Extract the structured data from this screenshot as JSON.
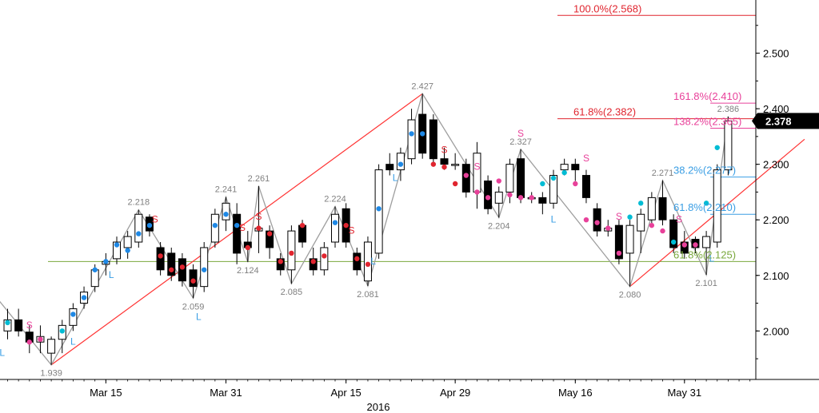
{
  "chart_data": {
    "type": "candlestick",
    "y_axis": {
      "range": [
        1.92,
        2.58
      ],
      "ticks": [
        "2.000",
        "2.100",
        "2.200",
        "2.300",
        "2.400",
        "2.500"
      ],
      "tick_values": [
        2.0,
        2.1,
        2.2,
        2.3,
        2.4,
        2.5
      ],
      "position": "right"
    },
    "x_axis": {
      "range": [
        0,
        73
      ],
      "ticks": [
        {
          "label": "Mar 15",
          "index": 9
        },
        {
          "label": "Mar 31",
          "index": 20
        },
        {
          "label": "Apr 15",
          "index": 31
        },
        {
          "label": "Apr 29",
          "index": 41
        },
        {
          "label": "May 16",
          "index": 52
        },
        {
          "label": "May 31",
          "index": 62
        }
      ],
      "year_label": "2016"
    },
    "last_price": {
      "label": "2.378",
      "value": 2.378
    },
    "candles": [
      {
        "o": 2.0,
        "h": 2.04,
        "l": 1.985,
        "c": 2.02
      },
      {
        "o": 2.02,
        "h": 2.04,
        "l": 1.99,
        "c": 2.0
      },
      {
        "o": 1.998,
        "h": 2.01,
        "l": 1.96,
        "c": 1.98
      },
      {
        "o": 1.98,
        "h": 2.01,
        "l": 1.96,
        "c": 1.99
      },
      {
        "o": 1.96,
        "h": 1.99,
        "l": 1.939,
        "c": 1.985
      },
      {
        "o": 1.985,
        "h": 2.02,
        "l": 1.96,
        "c": 2.01
      },
      {
        "o": 2.01,
        "h": 2.05,
        "l": 2.0,
        "c": 2.04
      },
      {
        "o": 2.05,
        "h": 2.08,
        "l": 2.04,
        "c": 2.07
      },
      {
        "o": 2.08,
        "h": 2.12,
        "l": 2.07,
        "c": 2.11
      },
      {
        "o": 2.12,
        "h": 2.14,
        "l": 2.1,
        "c": 2.125
      },
      {
        "o": 2.13,
        "h": 2.17,
        "l": 2.12,
        "c": 2.16
      },
      {
        "o": 2.15,
        "h": 2.18,
        "l": 2.13,
        "c": 2.17
      },
      {
        "o": 2.16,
        "h": 2.218,
        "l": 2.15,
        "c": 2.21
      },
      {
        "o": 2.205,
        "h": 2.21,
        "l": 2.17,
        "c": 2.18
      },
      {
        "o": 2.15,
        "h": 2.16,
        "l": 2.1,
        "c": 2.11
      },
      {
        "o": 2.14,
        "h": 2.15,
        "l": 2.09,
        "c": 2.1
      },
      {
        "o": 2.13,
        "h": 2.14,
        "l": 2.08,
        "c": 2.09
      },
      {
        "o": 2.11,
        "h": 2.12,
        "l": 2.059,
        "c": 2.08
      },
      {
        "o": 2.08,
        "h": 2.16,
        "l": 2.07,
        "c": 2.15
      },
      {
        "o": 2.16,
        "h": 2.22,
        "l": 2.15,
        "c": 2.21
      },
      {
        "o": 2.2,
        "h": 2.241,
        "l": 2.18,
        "c": 2.23
      },
      {
        "o": 2.21,
        "h": 2.23,
        "l": 2.12,
        "c": 2.14
      },
      {
        "o": 2.16,
        "h": 2.18,
        "l": 2.124,
        "c": 2.15
      },
      {
        "o": 2.18,
        "h": 2.261,
        "l": 2.14,
        "c": 2.185
      },
      {
        "o": 2.18,
        "h": 2.19,
        "l": 2.13,
        "c": 2.15
      },
      {
        "o": 2.13,
        "h": 2.14,
        "l": 2.1,
        "c": 2.11
      },
      {
        "o": 2.11,
        "h": 2.19,
        "l": 2.085,
        "c": 2.18
      },
      {
        "o": 2.19,
        "h": 2.2,
        "l": 2.15,
        "c": 2.16
      },
      {
        "o": 2.13,
        "h": 2.15,
        "l": 2.1,
        "c": 2.11
      },
      {
        "o": 2.11,
        "h": 2.16,
        "l": 2.1,
        "c": 2.15
      },
      {
        "o": 2.16,
        "h": 2.224,
        "l": 2.15,
        "c": 2.21
      },
      {
        "o": 2.22,
        "h": 2.23,
        "l": 2.15,
        "c": 2.16
      },
      {
        "o": 2.14,
        "h": 2.15,
        "l": 2.1,
        "c": 2.11
      },
      {
        "o": 2.09,
        "h": 2.17,
        "l": 2.081,
        "c": 2.16
      },
      {
        "o": 2.14,
        "h": 2.3,
        "l": 2.13,
        "c": 2.29
      },
      {
        "o": 2.3,
        "h": 2.32,
        "l": 2.28,
        "c": 2.29
      },
      {
        "o": 2.29,
        "h": 2.33,
        "l": 2.27,
        "c": 2.32
      },
      {
        "o": 2.31,
        "h": 2.4,
        "l": 2.3,
        "c": 2.38
      },
      {
        "o": 2.39,
        "h": 2.427,
        "l": 2.31,
        "c": 2.32
      },
      {
        "o": 2.38,
        "h": 2.39,
        "l": 2.3,
        "c": 2.31
      },
      {
        "o": 2.31,
        "h": 2.33,
        "l": 2.29,
        "c": 2.3
      },
      {
        "o": 2.3,
        "h": 2.32,
        "l": 2.29,
        "c": 2.3
      },
      {
        "o": 2.3,
        "h": 2.31,
        "l": 2.24,
        "c": 2.25
      },
      {
        "o": 2.25,
        "h": 2.34,
        "l": 2.22,
        "c": 2.32
      },
      {
        "o": 2.27,
        "h": 2.28,
        "l": 2.21,
        "c": 2.22
      },
      {
        "o": 2.23,
        "h": 2.26,
        "l": 2.204,
        "c": 2.25
      },
      {
        "o": 2.25,
        "h": 2.31,
        "l": 2.23,
        "c": 2.3
      },
      {
        "o": 2.31,
        "h": 2.327,
        "l": 2.23,
        "c": 2.24
      },
      {
        "o": 2.24,
        "h": 2.25,
        "l": 2.23,
        "c": 2.24
      },
      {
        "o": 2.24,
        "h": 2.25,
        "l": 2.21,
        "c": 2.23
      },
      {
        "o": 2.23,
        "h": 2.29,
        "l": 2.22,
        "c": 2.28
      },
      {
        "o": 2.29,
        "h": 2.31,
        "l": 2.28,
        "c": 2.3
      },
      {
        "o": 2.3,
        "h": 2.31,
        "l": 2.27,
        "c": 2.29
      },
      {
        "o": 2.28,
        "h": 2.29,
        "l": 2.23,
        "c": 2.24
      },
      {
        "o": 2.22,
        "h": 2.23,
        "l": 2.17,
        "c": 2.18
      },
      {
        "o": 2.18,
        "h": 2.2,
        "l": 2.17,
        "c": 2.185
      },
      {
        "o": 2.19,
        "h": 2.2,
        "l": 2.12,
        "c": 2.13
      },
      {
        "o": 2.14,
        "h": 2.2,
        "l": 2.08,
        "c": 2.19
      },
      {
        "o": 2.18,
        "h": 2.22,
        "l": 2.14,
        "c": 2.21
      },
      {
        "o": 2.2,
        "h": 2.25,
        "l": 2.19,
        "c": 2.24
      },
      {
        "o": 2.24,
        "h": 2.271,
        "l": 2.19,
        "c": 2.2
      },
      {
        "o": 2.2,
        "h": 2.21,
        "l": 2.14,
        "c": 2.15
      },
      {
        "o": 2.16,
        "h": 2.18,
        "l": 2.13,
        "c": 2.14
      },
      {
        "o": 2.165,
        "h": 2.17,
        "l": 2.14,
        "c": 2.15
      },
      {
        "o": 2.15,
        "h": 2.18,
        "l": 2.101,
        "c": 2.17
      },
      {
        "o": 2.16,
        "h": 2.3,
        "l": 2.15,
        "c": 2.29
      },
      {
        "o": 2.29,
        "h": 2.386,
        "l": 2.28,
        "c": 2.378
      }
    ],
    "candle_start_index": 0,
    "zigzag": [
      {
        "i": -1,
        "v": 2.06
      },
      {
        "i": 4,
        "v": 1.939
      },
      {
        "i": 12,
        "v": 2.218
      },
      {
        "i": 17,
        "v": 2.059
      },
      {
        "i": 20,
        "v": 2.241
      },
      {
        "i": 22,
        "v": 2.124
      },
      {
        "i": 23,
        "v": 2.261
      },
      {
        "i": 26,
        "v": 2.085
      },
      {
        "i": 30,
        "v": 2.224
      },
      {
        "i": 33,
        "v": 2.081
      },
      {
        "i": 38,
        "v": 2.427
      },
      {
        "i": 45,
        "v": 2.204
      },
      {
        "i": 47,
        "v": 2.327
      },
      {
        "i": 57,
        "v": 2.08
      },
      {
        "i": 60,
        "v": 2.271
      },
      {
        "i": 64,
        "v": 2.101
      },
      {
        "i": 66,
        "v": 2.386
      }
    ],
    "pivot_labels": [
      {
        "text": "1.939",
        "i": 4,
        "v": 1.939,
        "pos": "below"
      },
      {
        "text": "2.218",
        "i": 12,
        "v": 2.218,
        "pos": "above"
      },
      {
        "text": "2.059",
        "i": 17,
        "v": 2.059,
        "pos": "below"
      },
      {
        "text": "2.241",
        "i": 20,
        "v": 2.241,
        "pos": "above"
      },
      {
        "text": "2.124",
        "i": 22,
        "v": 2.124,
        "pos": "below"
      },
      {
        "text": "2.261",
        "i": 23,
        "v": 2.261,
        "pos": "above"
      },
      {
        "text": "2.085",
        "i": 26,
        "v": 2.085,
        "pos": "below"
      },
      {
        "text": "2.224",
        "i": 30,
        "v": 2.224,
        "pos": "above"
      },
      {
        "text": "2.081",
        "i": 33,
        "v": 2.081,
        "pos": "below"
      },
      {
        "text": "2.427",
        "i": 38,
        "v": 2.427,
        "pos": "above"
      },
      {
        "text": "2.204",
        "i": 45,
        "v": 2.204,
        "pos": "below"
      },
      {
        "text": "2.327",
        "i": 47,
        "v": 2.327,
        "pos": "above"
      },
      {
        "text": "2.080",
        "i": 57,
        "v": 2.08,
        "pos": "below"
      },
      {
        "text": "2.271",
        "i": 60,
        "v": 2.271,
        "pos": "above"
      },
      {
        "text": "2.101",
        "i": 64,
        "v": 2.101,
        "pos": "below"
      },
      {
        "text": "2.386",
        "i": 66,
        "v": 2.386,
        "pos": "above"
      }
    ],
    "trend_lines": [
      {
        "from": {
          "i": 4,
          "v": 1.939
        },
        "to": {
          "i": 38,
          "v": 2.427
        },
        "color": "#ff3333"
      },
      {
        "from": {
          "i": 57,
          "v": 2.08
        },
        "to": {
          "i": 73,
          "v": 2.345
        },
        "color": "#ff3333"
      }
    ],
    "fib_levels": [
      {
        "label": "100.0%(2.568)",
        "value": 2.568,
        "color": "#e0252f",
        "from_i": 50
      },
      {
        "label": "161.8%(2.410)",
        "value": 2.41,
        "color": "#e8419a",
        "from_i": 64
      },
      {
        "label": "61.8%(2.382)",
        "value": 2.382,
        "color": "#e0252f",
        "from_i": 50
      },
      {
        "label": "138.2%(2.365)",
        "value": 2.365,
        "color": "#e8419a",
        "from_i": 64
      },
      {
        "label": "38.2%(2.277)",
        "value": 2.277,
        "color": "#3a9ee4",
        "from_i": 64
      },
      {
        "label": "61.8%(2.210)",
        "value": 2.21,
        "color": "#3a9ee4",
        "from_i": 64
      },
      {
        "label": "61.8%(2.125)",
        "value": 2.125,
        "color": "#7aa83c",
        "from_i": -1
      }
    ],
    "signal_labels": [
      {
        "text": "S",
        "i": 2,
        "v": 2.005,
        "color": "#e8419a"
      },
      {
        "text": "L",
        "i": -0.5,
        "v": 1.955,
        "color": "#3a9ee4"
      },
      {
        "text": "L",
        "i": 6,
        "v": 1.975,
        "color": "#3a9ee4"
      },
      {
        "text": "L",
        "i": 9.5,
        "v": 2.095,
        "color": "#3a9ee4"
      },
      {
        "text": "S",
        "i": 13.5,
        "v": 2.195,
        "color": "#e0252f"
      },
      {
        "text": "L",
        "i": 17.5,
        "v": 2.02,
        "color": "#3a9ee4"
      },
      {
        "text": "S",
        "i": 21.5,
        "v": 2.18,
        "color": "#e0252f"
      },
      {
        "text": "S",
        "i": 23,
        "v": 2.2,
        "color": "#e0252f"
      },
      {
        "text": "S",
        "i": 31.5,
        "v": 2.175,
        "color": "#e0252f"
      },
      {
        "text": "L",
        "i": 33.5,
        "v": 2.12,
        "color": "#3a9ee4"
      },
      {
        "text": "L",
        "i": 35.5,
        "v": 2.27,
        "color": "#3a9ee4"
      },
      {
        "text": "S",
        "i": 40,
        "v": 2.32,
        "color": "#e0252f"
      },
      {
        "text": "S",
        "i": 43,
        "v": 2.29,
        "color": "#e8419a"
      },
      {
        "text": "S",
        "i": 47,
        "v": 2.35,
        "color": "#e8419a"
      },
      {
        "text": "L",
        "i": 50,
        "v": 2.195,
        "color": "#3a9ee4"
      },
      {
        "text": "S",
        "i": 53,
        "v": 2.305,
        "color": "#e8419a"
      },
      {
        "text": "S",
        "i": 56,
        "v": 2.2,
        "color": "#e8419a"
      },
      {
        "text": "S",
        "i": 61.5,
        "v": 2.195,
        "color": "#e8419a"
      },
      {
        "text": "L",
        "i": 64.5,
        "v": 2.125,
        "color": "#3a9ee4"
      }
    ],
    "dots": [
      {
        "i": 0,
        "v": 2.015,
        "color": "#00bcd4"
      },
      {
        "i": 2,
        "v": 1.98,
        "color": "#e8419a"
      },
      {
        "i": 3,
        "v": 1.985,
        "color": "#e8419a"
      },
      {
        "i": 5,
        "v": 2.0,
        "color": "#00bcd4"
      },
      {
        "i": 6,
        "v": 2.03,
        "color": "#1e88e5"
      },
      {
        "i": 7,
        "v": 2.06,
        "color": "#1e88e5"
      },
      {
        "i": 8,
        "v": 2.11,
        "color": "#1e88e5"
      },
      {
        "i": 9,
        "v": 2.125,
        "color": "#1e88e5"
      },
      {
        "i": 10,
        "v": 2.155,
        "color": "#1e88e5"
      },
      {
        "i": 11,
        "v": 2.145,
        "color": "#1e88e5"
      },
      {
        "i": 12,
        "v": 2.175,
        "color": "#1e88e5"
      },
      {
        "i": 13,
        "v": 2.19,
        "color": "#1e88e5"
      },
      {
        "i": 14,
        "v": 2.135,
        "color": "#e0252f"
      },
      {
        "i": 15,
        "v": 2.11,
        "color": "#e0252f"
      },
      {
        "i": 16,
        "v": 2.115,
        "color": "#e0252f"
      },
      {
        "i": 17,
        "v": 2.09,
        "color": "#e0252f"
      },
      {
        "i": 18,
        "v": 2.11,
        "color": "#1e88e5"
      },
      {
        "i": 19,
        "v": 2.19,
        "color": "#1e88e5"
      },
      {
        "i": 20,
        "v": 2.21,
        "color": "#1e88e5"
      },
      {
        "i": 21,
        "v": 2.19,
        "color": "#1e88e5"
      },
      {
        "i": 22,
        "v": 2.15,
        "color": "#e0252f"
      },
      {
        "i": 23,
        "v": 2.185,
        "color": "#e0252f"
      },
      {
        "i": 24,
        "v": 2.175,
        "color": "#e0252f"
      },
      {
        "i": 25,
        "v": 2.125,
        "color": "#e0252f"
      },
      {
        "i": 26,
        "v": 2.14,
        "color": "#e0252f"
      },
      {
        "i": 27,
        "v": 2.19,
        "color": "#e0252f"
      },
      {
        "i": 28,
        "v": 2.125,
        "color": "#e0252f"
      },
      {
        "i": 29,
        "v": 2.135,
        "color": "#e0252f"
      },
      {
        "i": 30,
        "v": 2.195,
        "color": "#1e88e5"
      },
      {
        "i": 31,
        "v": 2.19,
        "color": "#e0252f"
      },
      {
        "i": 32,
        "v": 2.13,
        "color": "#e0252f"
      },
      {
        "i": 33,
        "v": 2.12,
        "color": "#e0252f"
      },
      {
        "i": 34,
        "v": 2.22,
        "color": "#1e88e5"
      },
      {
        "i": 36,
        "v": 2.3,
        "color": "#1e88e5"
      },
      {
        "i": 37,
        "v": 2.355,
        "color": "#1e88e5"
      },
      {
        "i": 38,
        "v": 2.355,
        "color": "#1e88e5"
      },
      {
        "i": 39,
        "v": 2.3,
        "color": "#e0252f"
      },
      {
        "i": 40,
        "v": 2.295,
        "color": "#e0252f"
      },
      {
        "i": 41,
        "v": 2.265,
        "color": "#e0252f"
      },
      {
        "i": 42,
        "v": 2.28,
        "color": "#e8419a"
      },
      {
        "i": 43,
        "v": 2.25,
        "color": "#e8419a"
      },
      {
        "i": 44,
        "v": 2.24,
        "color": "#e8419a"
      },
      {
        "i": 45,
        "v": 2.27,
        "color": "#e8419a"
      },
      {
        "i": 46,
        "v": 2.245,
        "color": "#e8419a"
      },
      {
        "i": 47,
        "v": 2.24,
        "color": "#e8419a"
      },
      {
        "i": 48,
        "v": 2.24,
        "color": "#e8419a"
      },
      {
        "i": 49,
        "v": 2.265,
        "color": "#00bcd4"
      },
      {
        "i": 50,
        "v": 2.275,
        "color": "#00bcd4"
      },
      {
        "i": 51,
        "v": 2.285,
        "color": "#00bcd4"
      },
      {
        "i": 52,
        "v": 2.265,
        "color": "#e8419a"
      },
      {
        "i": 53,
        "v": 2.2,
        "color": "#e8419a"
      },
      {
        "i": 54,
        "v": 2.195,
        "color": "#e8419a"
      },
      {
        "i": 55,
        "v": 2.185,
        "color": "#e8419a"
      },
      {
        "i": 56,
        "v": 2.14,
        "color": "#e8419a"
      },
      {
        "i": 57,
        "v": 2.205,
        "color": "#00bcd4"
      },
      {
        "i": 58,
        "v": 2.23,
        "color": "#00bcd4"
      },
      {
        "i": 59,
        "v": 2.19,
        "color": "#e8419a"
      },
      {
        "i": 60,
        "v": 2.18,
        "color": "#e8419a"
      },
      {
        "i": 61,
        "v": 2.16,
        "color": "#00bcd4"
      },
      {
        "i": 62,
        "v": 2.155,
        "color": "#e8419a"
      },
      {
        "i": 63,
        "v": 2.155,
        "color": "#e8419a"
      },
      {
        "i": 64,
        "v": 2.23,
        "color": "#00bcd4"
      },
      {
        "i": 65,
        "v": 2.33,
        "color": "#00bcd4"
      }
    ]
  }
}
